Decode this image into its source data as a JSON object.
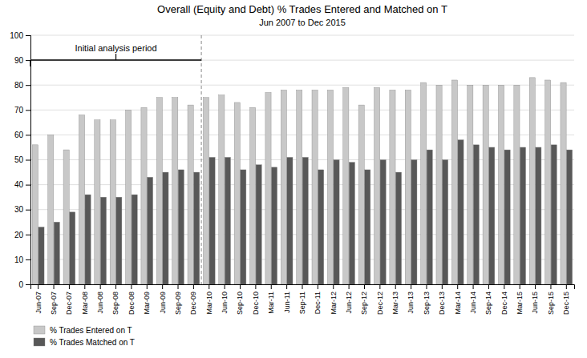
{
  "chart_data": {
    "type": "bar",
    "title": "Overall (Equity and Debt) % Trades Entered and Matched on T",
    "subtitle": "Jun 2007 to Dec 2015",
    "categories": [
      "Jun-07",
      "Sep-07",
      "Dec-07",
      "Mar-08",
      "Jun-08",
      "Sep-08",
      "Dec-08",
      "Mar-09",
      "Jun-09",
      "Sep-09",
      "Dec-09",
      "Mar-10",
      "Jun-10",
      "Sep-10",
      "Dec-10",
      "Mar-11",
      "Jun-11",
      "Sep-11",
      "Dec-11",
      "Mar-12",
      "Jun-12",
      "Sep-12",
      "Dec-12",
      "Mar-13",
      "Jun-13",
      "Sep-13",
      "Dec-13",
      "Mar-14",
      "Jun-14",
      "Sep-14",
      "Dec-14",
      "Mar-15",
      "Jun-15",
      "Sep-15",
      "Dec-15"
    ],
    "series": [
      {
        "name": "% Trades Entered on T",
        "color": "#c8c8c8",
        "values": [
          56,
          60,
          54,
          68,
          66,
          66,
          70,
          71,
          75,
          75,
          72,
          75,
          76,
          73,
          71,
          77,
          78,
          78,
          78,
          78,
          79,
          72,
          79,
          78,
          78,
          81,
          80,
          82,
          80,
          80,
          80,
          80,
          83,
          82,
          81
        ]
      },
      {
        "name": "% Trades Matched on T",
        "color": "#585858",
        "values": [
          23,
          25,
          29,
          36,
          35,
          35,
          36,
          43,
          45,
          46,
          45,
          51,
          51,
          46,
          48,
          47,
          51,
          51,
          46,
          50,
          49,
          46,
          50,
          45,
          50,
          54,
          50,
          58,
          56,
          55,
          54,
          55,
          55,
          56,
          54
        ]
      }
    ],
    "ylim": [
      0,
      100
    ],
    "yticks": [
      0,
      10,
      20,
      30,
      40,
      50,
      60,
      70,
      80,
      90,
      100
    ],
    "grid": true,
    "legend": "bottom-left",
    "annotations": [
      {
        "text": "Initial analysis period",
        "x_start": "Jun-07",
        "x_end": "Dec-09",
        "y": 90
      }
    ]
  }
}
